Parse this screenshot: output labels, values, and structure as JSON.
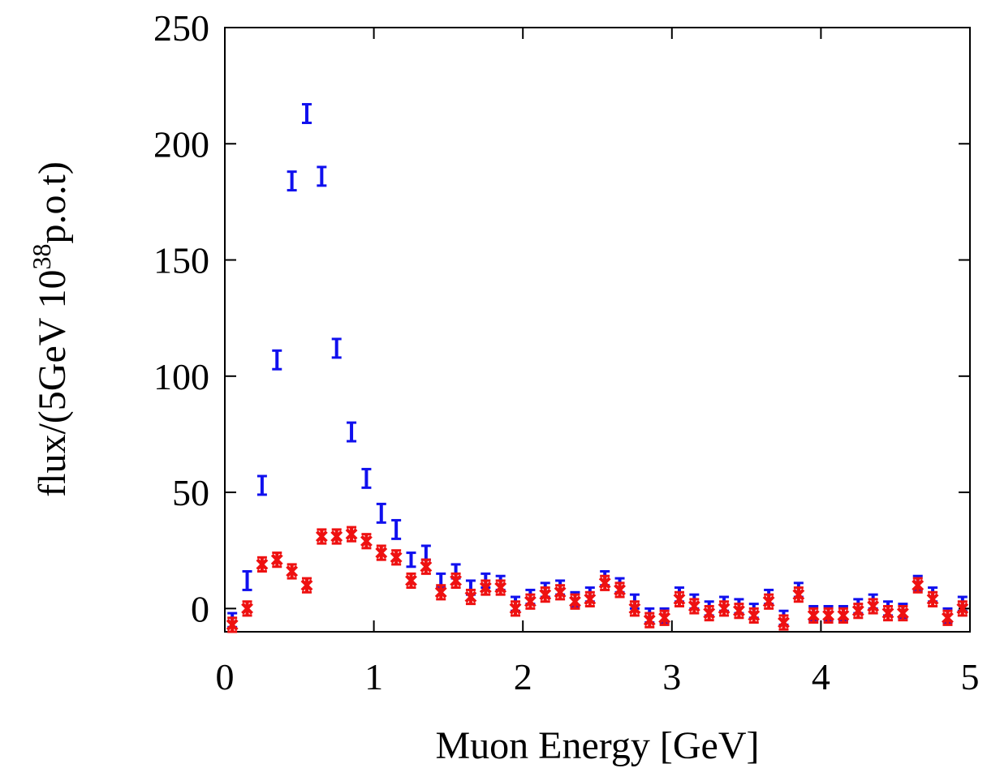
{
  "chart_data": {
    "type": "scatter",
    "xlabel": "Muon Energy [GeV]",
    "ylabel": "flux/(5GeV 10",
    "ylabel_sup": "38",
    "ylabel_tail": "p.o.t)",
    "xlim": [
      0,
      5
    ],
    "ylim": [
      -10,
      250
    ],
    "xticks": [
      "0",
      "1",
      "2",
      "3",
      "4",
      "5"
    ],
    "yticks": [
      "0",
      "50",
      "100",
      "150",
      "200",
      "250"
    ],
    "grid": false,
    "series": [
      {
        "color": "#1010ee",
        "marker": "error-bar",
        "x": [
          0.05,
          0.15,
          0.25,
          0.35,
          0.45,
          0.55,
          0.65,
          0.75,
          0.85,
          0.95,
          1.05,
          1.15,
          1.25,
          1.35,
          1.45,
          1.55,
          1.65,
          1.75,
          1.85,
          1.95,
          2.05,
          2.15,
          2.25,
          2.35,
          2.45,
          2.55,
          2.65,
          2.75,
          2.85,
          2.95,
          3.05,
          3.15,
          3.25,
          3.35,
          3.45,
          3.55,
          3.65,
          3.75,
          3.85,
          3.95,
          4.05,
          4.15,
          4.25,
          4.35,
          4.45,
          4.55,
          4.65,
          4.75,
          4.85,
          4.95
        ],
        "y": [
          -5,
          12,
          53,
          107,
          184,
          213,
          186,
          112,
          76,
          56,
          41,
          34,
          21,
          24,
          12,
          16,
          9,
          12,
          11,
          2,
          5,
          8,
          9,
          4,
          6,
          13,
          10,
          3,
          -3,
          -3,
          6,
          3,
          0,
          2,
          1,
          -1,
          5,
          -4,
          8,
          -2,
          -2,
          -2,
          1,
          3,
          0,
          -1,
          11,
          6,
          -3,
          2
        ],
        "err": [
          3,
          4,
          4,
          4,
          4,
          4,
          4,
          4,
          4,
          4,
          4,
          4,
          3,
          3,
          3,
          3,
          3,
          3,
          3,
          3,
          3,
          3,
          3,
          3,
          3,
          3,
          3,
          3,
          3,
          3,
          3,
          3,
          3,
          3,
          3,
          3,
          3,
          3,
          3,
          3,
          3,
          3,
          3,
          3,
          3,
          3,
          3,
          3,
          3,
          3
        ]
      },
      {
        "color": "#ee1111",
        "marker": "cross",
        "x": [
          0.05,
          0.15,
          0.25,
          0.35,
          0.45,
          0.55,
          0.65,
          0.75,
          0.85,
          0.95,
          1.05,
          1.15,
          1.25,
          1.35,
          1.45,
          1.55,
          1.65,
          1.75,
          1.85,
          1.95,
          2.05,
          2.15,
          2.25,
          2.35,
          2.45,
          2.55,
          2.65,
          2.75,
          2.85,
          2.95,
          3.05,
          3.15,
          3.25,
          3.35,
          3.45,
          3.55,
          3.65,
          3.75,
          3.85,
          3.95,
          4.05,
          4.15,
          4.25,
          4.35,
          4.45,
          4.55,
          4.65,
          4.75,
          4.85,
          4.95
        ],
        "y": [
          -7,
          0,
          19,
          21,
          16,
          10,
          31,
          31,
          32,
          29,
          24,
          22,
          12,
          18,
          7,
          12,
          5,
          9,
          9,
          0,
          3,
          6,
          7,
          3,
          4,
          11,
          8,
          0,
          -5,
          -4,
          4,
          1,
          -2,
          0,
          -1,
          -3,
          3,
          -6,
          6,
          -3,
          -3,
          -3,
          -1,
          1,
          -2,
          -2,
          10,
          4,
          -4,
          0
        ],
        "err": [
          3,
          3,
          3,
          3,
          3,
          3,
          3,
          3,
          3,
          3,
          3,
          3,
          3,
          3,
          3,
          3,
          3,
          3,
          3,
          3,
          3,
          3,
          3,
          3,
          3,
          3,
          3,
          3,
          3,
          3,
          3,
          3,
          3,
          3,
          3,
          3,
          3,
          3,
          3,
          3,
          3,
          3,
          3,
          3,
          3,
          3,
          3,
          3,
          3,
          3
        ]
      }
    ]
  }
}
